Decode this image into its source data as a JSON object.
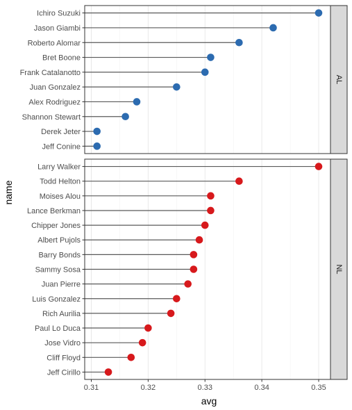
{
  "chart_data": {
    "type": "lollipop",
    "xlabel": "avg",
    "ylabel": "name",
    "xlim": [
      0.31,
      0.35
    ],
    "x_ticks": [
      "0.31",
      "0.32",
      "0.33",
      "0.34",
      "0.35"
    ],
    "grid": true,
    "facets": [
      {
        "label": "AL",
        "color": "#2C6BB0",
        "names": [
          "Ichiro Suzuki",
          "Jason Giambi",
          "Roberto Alomar",
          "Bret Boone",
          "Frank Catalanotto",
          "Juan Gonzalez",
          "Alex Rodriguez",
          "Shannon Stewart",
          "Derek Jeter",
          "Jeff Conine"
        ],
        "values": [
          0.35,
          0.342,
          0.336,
          0.331,
          0.33,
          0.325,
          0.318,
          0.316,
          0.311,
          0.311
        ]
      },
      {
        "label": "NL",
        "color": "#D7191C",
        "names": [
          "Larry Walker",
          "Todd Helton",
          "Moises Alou",
          "Lance Berkman",
          "Chipper Jones",
          "Albert Pujols",
          "Barry Bonds",
          "Sammy Sosa",
          "Juan Pierre",
          "Luis Gonzalez",
          "Rich Aurilia",
          "Paul Lo Duca",
          "Jose Vidro",
          "Cliff Floyd",
          "Jeff Cirillo"
        ],
        "values": [
          0.35,
          0.336,
          0.331,
          0.331,
          0.33,
          0.329,
          0.328,
          0.328,
          0.327,
          0.325,
          0.324,
          0.32,
          0.319,
          0.317,
          0.313
        ]
      }
    ]
  }
}
